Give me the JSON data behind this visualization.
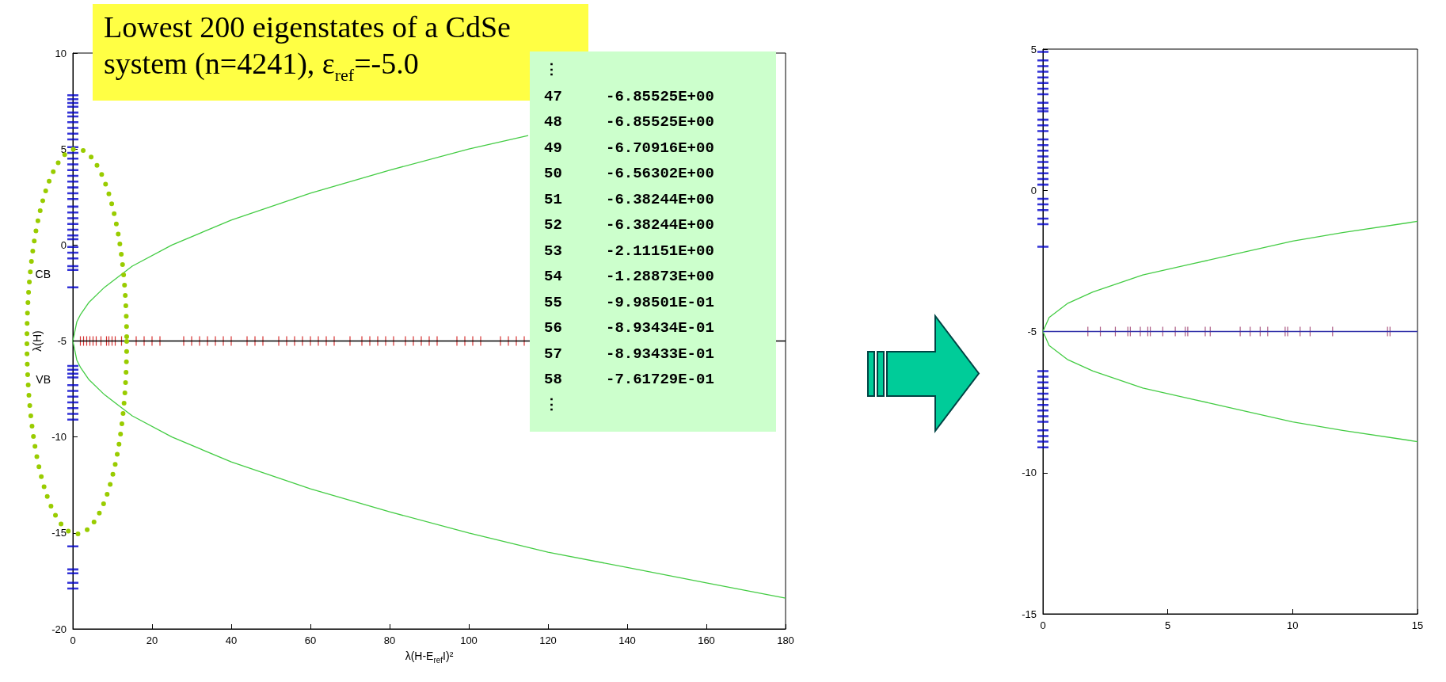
{
  "chart_data": [
    {
      "type": "scatter",
      "xlabel": "λ(H-E$_{ref}$I)²",
      "ylabel": "λ(H)",
      "xlim": [
        0,
        180
      ],
      "xticks": [
        0,
        20,
        40,
        60,
        80,
        100,
        120,
        140,
        160,
        180
      ],
      "ylim": [
        -20,
        10
      ],
      "yticks": [
        -20,
        -15,
        -10,
        -5,
        0,
        5,
        10
      ],
      "ref_lines": [
        {
          "axis": "y",
          "value": -5,
          "color": "#000000"
        }
      ],
      "annotations": [
        "Lowest 200 eigenstates of a CdSe system (n=4241), ε$_{ref}$=-5.0",
        "⋮",
        "47 -6.85525E+00",
        "48 -6.85525E+00",
        "49 -6.70916E+00",
        "50 -6.56302E+00",
        "51 -6.38244E+00",
        "52 -6.38244E+00",
        "53 -2.11151E+00",
        "54 -1.28873E+00",
        "55 -9.98501E-01",
        "56 -8.93434E-01",
        "57 -8.93433E-01",
        "58 -7.61729E-01",
        "⋮",
        {
          "text": "CB",
          "x": 0,
          "y": -1.5
        },
        {
          "text": "VB",
          "x": 0,
          "y": -7
        }
      ],
      "series": [
        {
          "type": "line",
          "color": "#44cc44",
          "x": [
            115,
            100,
            80,
            60,
            40,
            25,
            15,
            8,
            4,
            2,
            1,
            0,
            1,
            2,
            4,
            8,
            15,
            25,
            40,
            60,
            80,
            100,
            120,
            140,
            160,
            180
          ],
          "values": [
            5.7,
            5,
            3.9,
            2.7,
            1.3,
            0,
            -1.1,
            -2.2,
            -3,
            -3.6,
            -4,
            -5,
            -6,
            -6.4,
            -7,
            -7.8,
            -8.9,
            -10,
            -11.3,
            -12.7,
            -13.9,
            -15,
            -16,
            -16.8,
            -17.6,
            -18.4
          ]
        },
        {
          "color": "#0000cc",
          "x": [
            0,
            0,
            0,
            0,
            0,
            0,
            0,
            0,
            0,
            0,
            0,
            0,
            0,
            0,
            0,
            0,
            0,
            0,
            0,
            0,
            0,
            0,
            0,
            0,
            0,
            0,
            0,
            0,
            0,
            0,
            0,
            0,
            0,
            0,
            0,
            0,
            0,
            0,
            0,
            0,
            0,
            0,
            0,
            0,
            0,
            0,
            0,
            0,
            0
          ],
          "values": [
            7.8,
            7.6,
            7.4,
            7.2,
            6.9,
            6.7,
            6.4,
            6.1,
            5.8,
            5.5,
            5.1,
            4.8,
            4.5,
            4.2,
            3.9,
            3.6,
            3.3,
            3.0,
            2.7,
            2.4,
            2.0,
            1.7,
            1.4,
            1.1,
            0.8,
            0.5,
            0.3,
            -0.1,
            -0.4,
            -0.7,
            -1.1,
            -1.3,
            -2.2,
            -6.3,
            -6.5,
            -6.7,
            -6.9,
            -7.3,
            -7.6,
            -7.9,
            -8.2,
            -8.5,
            -8.8,
            -9.1,
            -15.7,
            -16.9,
            -17.1,
            -17.6,
            -17.9
          ]
        },
        {
          "color": "#cc0000",
          "x": [
            1.9,
            2.7,
            3.5,
            4.3,
            5.1,
            5.9,
            7.1,
            8.5,
            9.1,
            9.9,
            10.7,
            12.3,
            16,
            18,
            20,
            22,
            28,
            30,
            32,
            34,
            36,
            38,
            40,
            44,
            46,
            48,
            52,
            54,
            56,
            58,
            60,
            62,
            64,
            66,
            70,
            73,
            75,
            77,
            79,
            81,
            84,
            86,
            88,
            90,
            92,
            97,
            99,
            101,
            103,
            108,
            110,
            112,
            114
          ],
          "values": [
            -5,
            -5,
            -5,
            -5,
            -5,
            -5,
            -5,
            -5,
            -5,
            -5,
            -5,
            -5,
            -5,
            -5,
            -5,
            -5,
            -5,
            -5,
            -5,
            -5,
            -5,
            -5,
            -5,
            -5,
            -5,
            -5,
            -5,
            -5,
            -5,
            -5,
            -5,
            -5,
            -5,
            -5,
            -5,
            -5,
            -5,
            -5,
            -5,
            -5,
            -5,
            -5,
            -5,
            -5,
            -5,
            -5,
            -5,
            -5,
            -5,
            -5,
            -5,
            -5,
            -5
          ]
        }
      ]
    },
    {
      "type": "scatter",
      "xlim": [
        0,
        15
      ],
      "xticks": [
        0,
        5,
        10,
        15
      ],
      "ylim": [
        -15,
        5
      ],
      "yticks": [
        -15,
        -10,
        -5,
        0,
        5
      ],
      "ref_lines": [
        {
          "axis": "y",
          "value": -5,
          "color": "#3333aa"
        }
      ],
      "series": [
        {
          "type": "line",
          "color": "#44cc44",
          "x": [
            15,
            12,
            10,
            8,
            6,
            4,
            2,
            1,
            0.25,
            0,
            0.25,
            1,
            2,
            4,
            6,
            8,
            10,
            12,
            15
          ],
          "values": [
            -1.1,
            -1.5,
            -1.8,
            -2.2,
            -2.6,
            -3,
            -3.6,
            -4,
            -4.5,
            -5,
            -5.5,
            -6,
            -6.4,
            -7,
            -7.4,
            -7.8,
            -8.2,
            -8.5,
            -8.9
          ]
        },
        {
          "color": "#0000cc",
          "x": [
            0,
            0,
            0,
            0,
            0,
            0,
            0,
            0,
            0,
            0,
            0,
            0,
            0,
            0,
            0,
            0,
            0,
            0,
            0,
            0,
            0,
            0,
            0,
            0,
            0,
            0,
            0,
            0,
            0,
            0,
            0,
            0,
            0,
            0,
            0,
            0,
            0,
            0,
            0,
            0,
            0,
            0,
            0
          ],
          "values": [
            4.9,
            4.6,
            4.4,
            4.2,
            4.0,
            3.8,
            3.6,
            3.4,
            3.1,
            2.9,
            2.8,
            2.5,
            2.3,
            2.1,
            1.8,
            1.6,
            1.4,
            1.2,
            1.0,
            0.8,
            0.6,
            0.4,
            0.2,
            -0.3,
            -0.5,
            -0.7,
            -1.0,
            -1.2,
            -2.0,
            -6.4,
            -6.6,
            -6.8,
            -7.0,
            -7.2,
            -7.4,
            -7.6,
            -7.8,
            -8.0,
            -8.2,
            -8.5,
            -8.7,
            -8.9,
            -9.1
          ]
        },
        {
          "color": "#993366",
          "x": [
            1.8,
            2.3,
            2.9,
            3.4,
            3.5,
            3.9,
            4.2,
            4.3,
            4.8,
            5.3,
            5.7,
            5.8,
            6.5,
            6.7,
            7.9,
            8.3,
            8.7,
            9.0,
            9.7,
            9.8,
            10.3,
            10.7,
            11.6,
            13.8,
            13.9
          ],
          "values": [
            -5,
            -5,
            -5,
            -5,
            -5,
            -5,
            -5,
            -5,
            -5,
            -5,
            -5,
            -5,
            -5,
            -5,
            -5,
            -5,
            -5,
            -5,
            -5,
            -5,
            -5,
            -5,
            -5,
            -5,
            -5
          ]
        }
      ]
    }
  ]
}
